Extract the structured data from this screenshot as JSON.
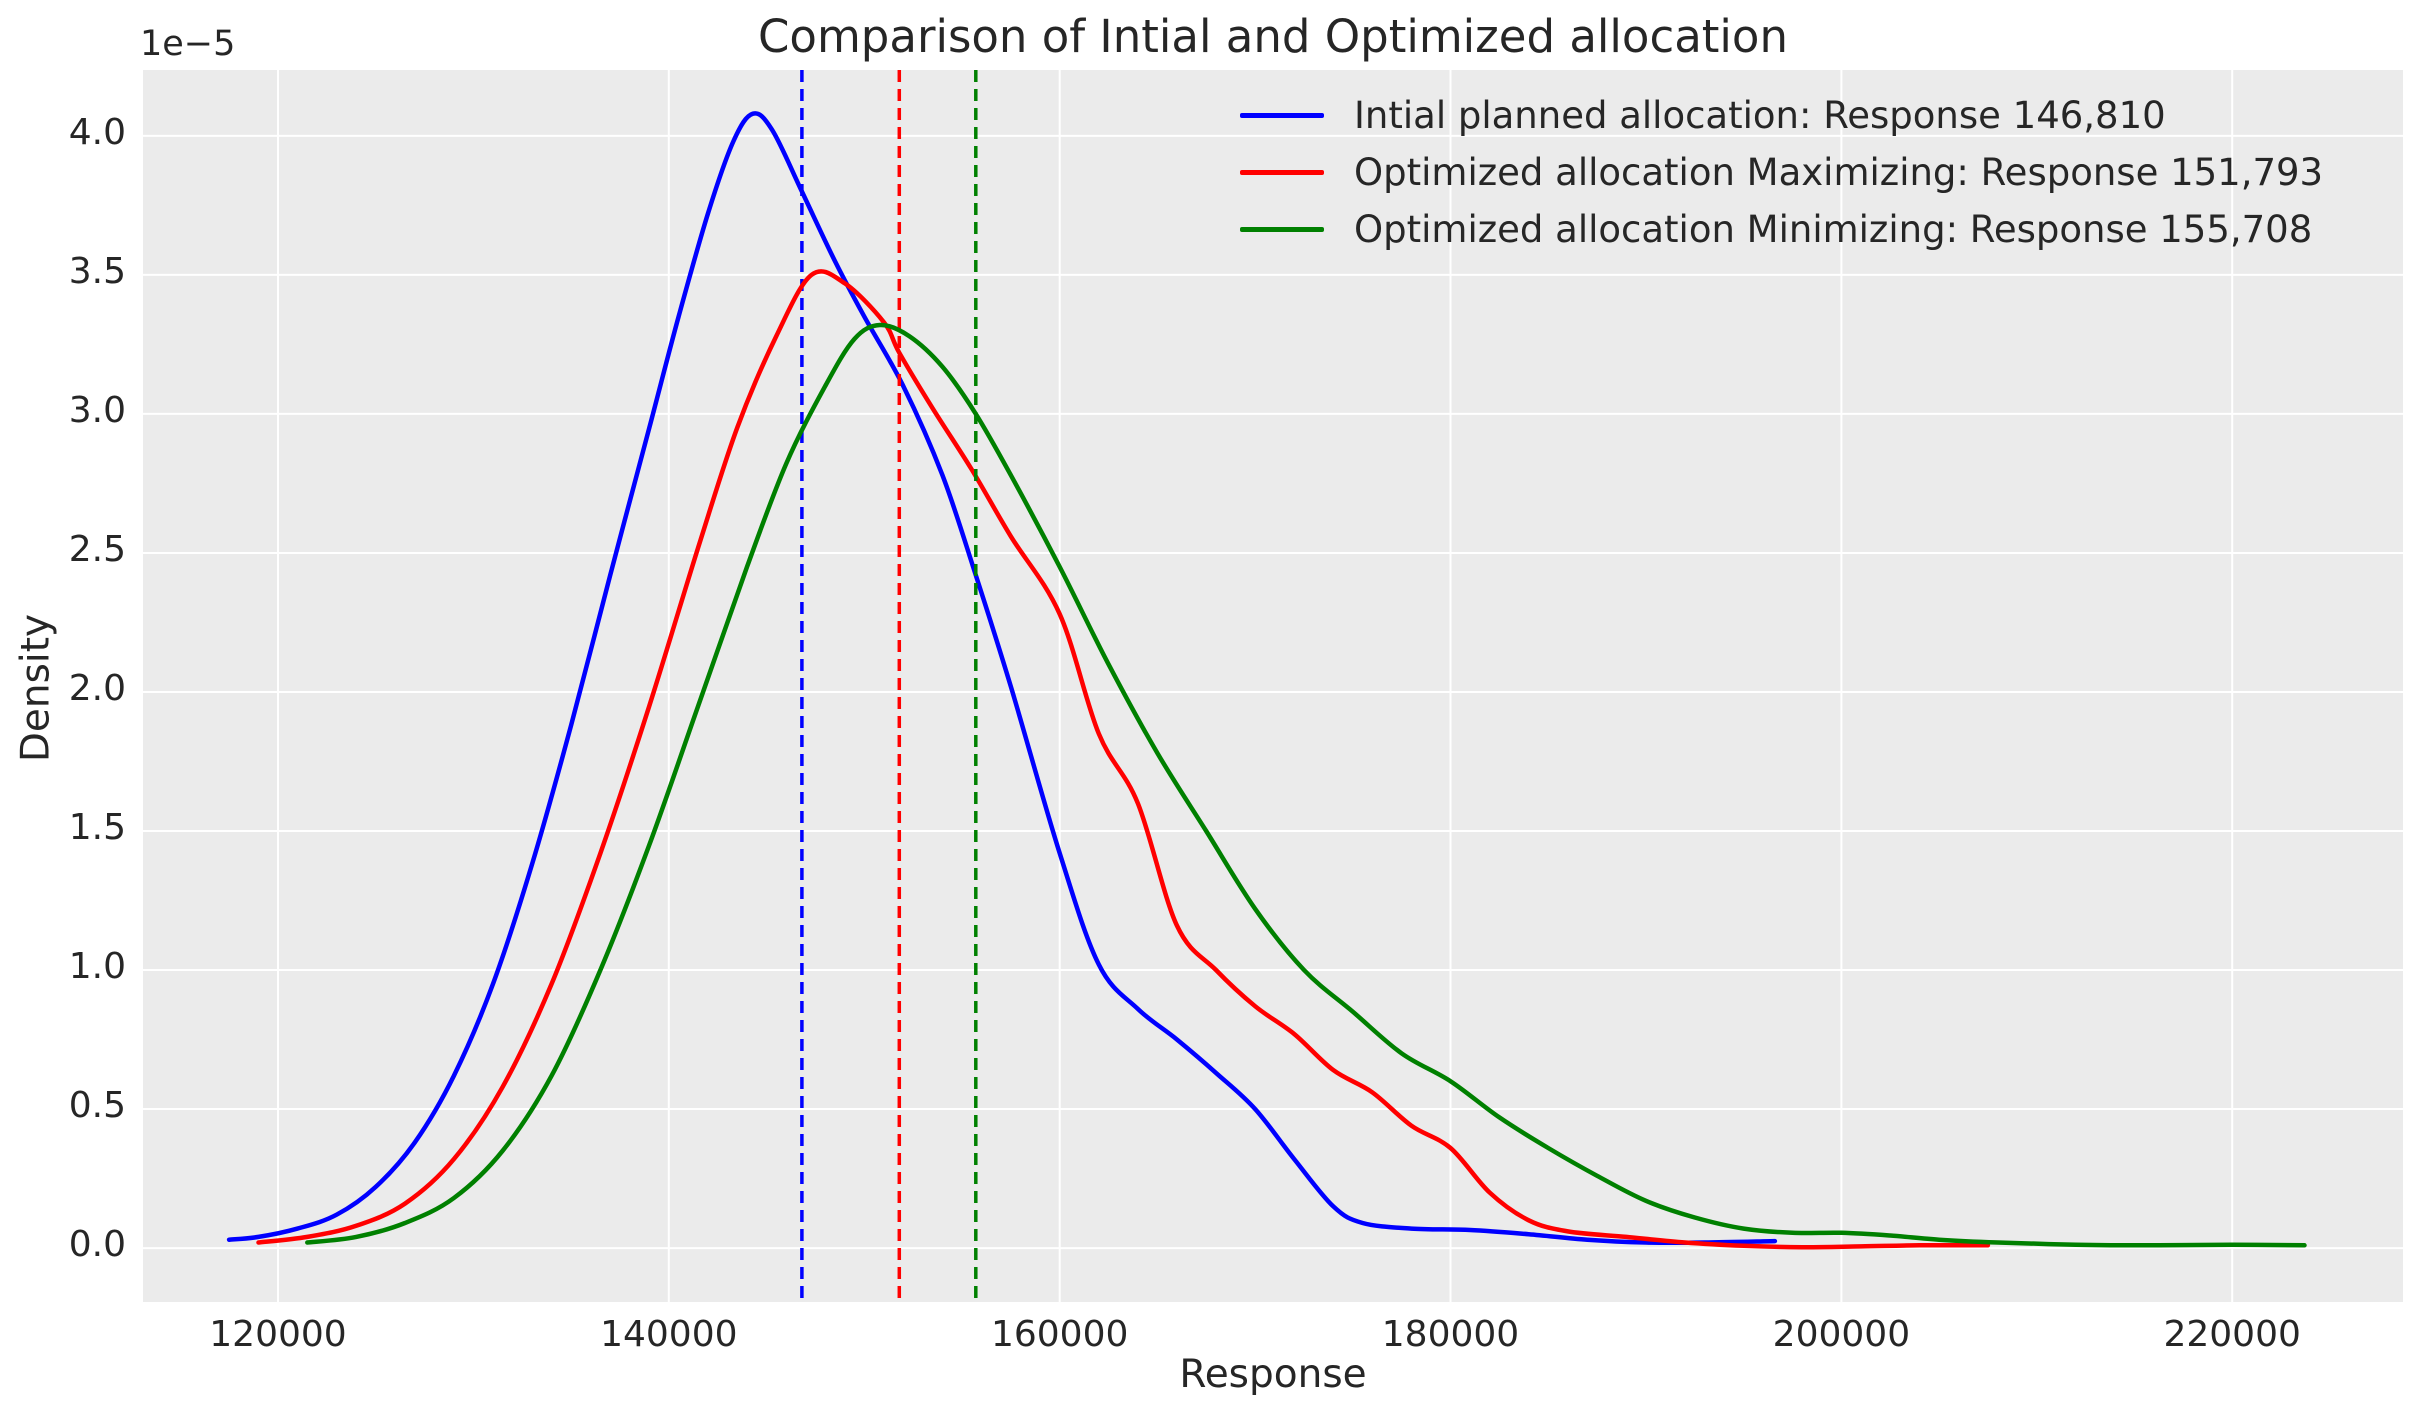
{
  "title": "Comparison of Intial and Optimized allocation",
  "axes": {
    "xlabel": "Response",
    "ylabel": "Density",
    "offset_label": "1e−5",
    "x_ticks": [
      {
        "value": 120000,
        "label": "120000"
      },
      {
        "value": 140000,
        "label": "140000"
      },
      {
        "value": 160000,
        "label": "160000"
      },
      {
        "value": 180000,
        "label": "180000"
      },
      {
        "value": 200000,
        "label": "200000"
      },
      {
        "value": 220000,
        "label": "220000"
      }
    ],
    "y_ticks": [
      {
        "value": 0.0,
        "label": "0.0"
      },
      {
        "value": 0.5,
        "label": "0.5"
      },
      {
        "value": 1.0,
        "label": "1.0"
      },
      {
        "value": 1.5,
        "label": "1.5"
      },
      {
        "value": 2.0,
        "label": "2.0"
      },
      {
        "value": 2.5,
        "label": "2.5"
      },
      {
        "value": 3.0,
        "label": "3.0"
      },
      {
        "value": 3.5,
        "label": "3.5"
      },
      {
        "value": 4.0,
        "label": "4.0"
      }
    ]
  },
  "colors": {
    "blue": "#0000ff",
    "red": "#ff0000",
    "green": "#008000",
    "plot_background": "#ebebeb",
    "grid": "#ffffff",
    "text": "#262626"
  },
  "legend": {
    "items": [
      {
        "id": "initial",
        "color": "#0000ff",
        "label": "Intial planned allocation: Response 146,810"
      },
      {
        "id": "optimized-max",
        "color": "#ff0000",
        "label": "Optimized allocation Maximizing: Response 151,793"
      },
      {
        "id": "optimized-min",
        "color": "#008000",
        "label": "Optimized allocation Minimizing: Response 155,708"
      }
    ]
  },
  "chart_data": {
    "type": "line",
    "subtype": "kde-density",
    "title": "Comparison of Intial and Optimized allocation",
    "xlabel": "Response",
    "ylabel": "Density",
    "y_scale": "1e-5",
    "xlim": [
      113092,
      228740
    ],
    "ylim": [
      -0.194,
      4.237
    ],
    "grid": true,
    "legend_position": "upper right",
    "series": [
      {
        "name": "Intial planned allocation: Response 146,810",
        "id": "initial",
        "color": "#0000ff",
        "mean_response": 146810,
        "x": [
          117500,
          119000,
          121000,
          123000,
          125000,
          127000,
          129000,
          131000,
          133000,
          135000,
          137000,
          139000,
          140500,
          142000,
          143300,
          144300,
          145300,
          146810,
          148500,
          150000,
          152000,
          154000,
          155708,
          157500,
          160000,
          162000,
          164000,
          166000,
          168000,
          170000,
          172000,
          174000,
          175500,
          178000,
          181000,
          184000,
          187000,
          190000,
          193000,
          196600
        ],
        "y": [
          0.03,
          0.04,
          0.07,
          0.12,
          0.22,
          0.38,
          0.62,
          0.95,
          1.38,
          1.88,
          2.42,
          2.95,
          3.35,
          3.72,
          3.98,
          4.08,
          4.02,
          3.8,
          3.55,
          3.35,
          3.1,
          2.78,
          2.42,
          2.02,
          1.42,
          1.02,
          0.86,
          0.75,
          0.63,
          0.5,
          0.32,
          0.15,
          0.09,
          0.07,
          0.065,
          0.05,
          0.03,
          0.02,
          0.02,
          0.025
        ]
      },
      {
        "name": "Optimized allocation Maximizing: Response 151,793",
        "id": "optimized-max",
        "color": "#ff0000",
        "mean_response": 151793,
        "x": [
          119000,
          121500,
          124000,
          126500,
          129000,
          131500,
          134000,
          136500,
          139000,
          141500,
          143500,
          145500,
          147300,
          149000,
          151000,
          151793,
          153500,
          155500,
          157500,
          160000,
          162000,
          164000,
          166000,
          168000,
          170000,
          172000,
          174000,
          176000,
          178000,
          180000,
          182000,
          184000,
          186000,
          189000,
          192000,
          195000,
          198000,
          201000,
          204000,
          207500
        ],
        "y": [
          0.02,
          0.04,
          0.08,
          0.16,
          0.32,
          0.58,
          0.95,
          1.42,
          1.95,
          2.52,
          2.95,
          3.28,
          3.5,
          3.47,
          3.33,
          3.22,
          3.02,
          2.8,
          2.56,
          2.28,
          1.85,
          1.6,
          1.16,
          1.0,
          0.87,
          0.77,
          0.64,
          0.56,
          0.44,
          0.36,
          0.2,
          0.1,
          0.06,
          0.04,
          0.02,
          0.008,
          0.003,
          0.006,
          0.01,
          0.01
        ]
      },
      {
        "name": "Optimized allocation Minimizing: Response 155,708",
        "id": "optimized-min",
        "color": "#008000",
        "mean_response": 155708,
        "x": [
          121500,
          124000,
          126500,
          129000,
          131500,
          134000,
          136500,
          139000,
          141500,
          144000,
          146000,
          148000,
          149500,
          150800,
          152300,
          154000,
          155708,
          157500,
          160000,
          162500,
          165000,
          167500,
          170000,
          172500,
          175000,
          177500,
          180000,
          182500,
          185000,
          187500,
          190000,
          192500,
          195000,
          197500,
          200000,
          202500,
          205000,
          208000,
          212000,
          216000,
          220000,
          223700
        ],
        "y": [
          0.02,
          0.04,
          0.09,
          0.18,
          0.35,
          0.62,
          1.0,
          1.45,
          1.95,
          2.45,
          2.82,
          3.1,
          3.27,
          3.32,
          3.28,
          3.17,
          3.0,
          2.78,
          2.45,
          2.1,
          1.78,
          1.5,
          1.22,
          1.0,
          0.85,
          0.7,
          0.6,
          0.47,
          0.36,
          0.26,
          0.17,
          0.11,
          0.07,
          0.055,
          0.055,
          0.045,
          0.03,
          0.02,
          0.012,
          0.01,
          0.012,
          0.01
        ]
      }
    ],
    "mean_lines": [
      {
        "x": 146810,
        "color": "#0000ff",
        "style": "dashed"
      },
      {
        "x": 151793,
        "color": "#ff0000",
        "style": "dashed"
      },
      {
        "x": 155708,
        "color": "#008000",
        "style": "dashed"
      }
    ]
  }
}
